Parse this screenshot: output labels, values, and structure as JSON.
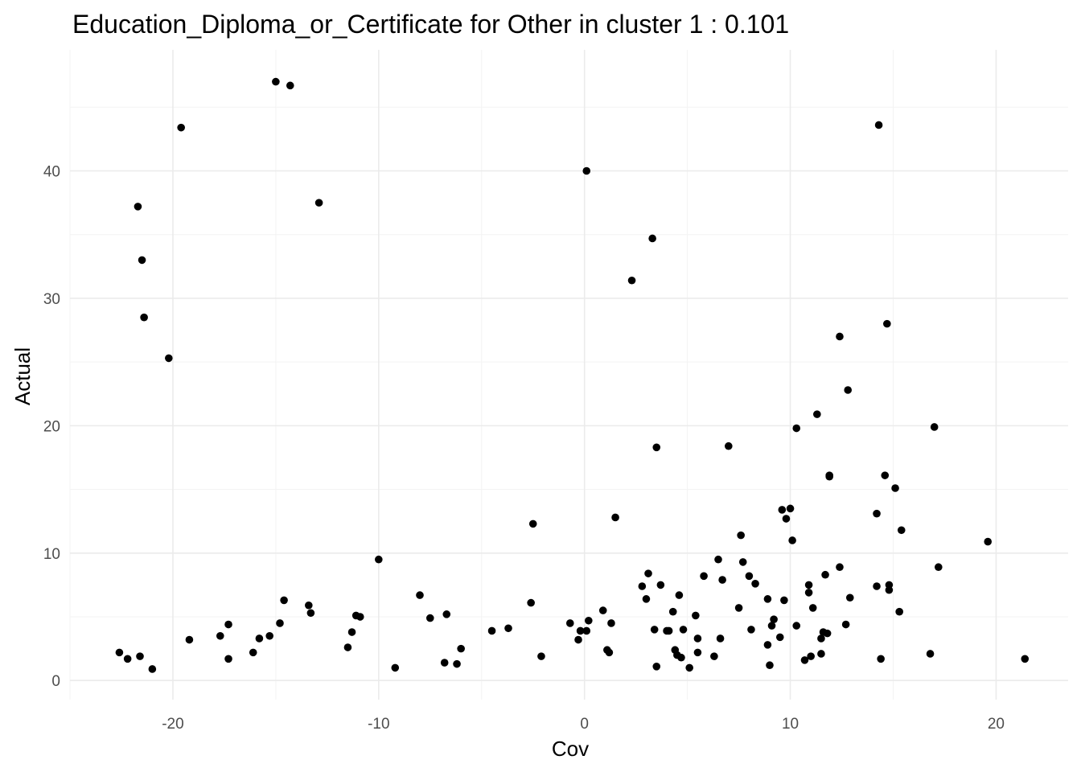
{
  "chart_data": {
    "type": "scatter",
    "title": "Education_Diploma_or_Certificate for Other in cluster 1 : 0.101",
    "xlabel": "Cov",
    "ylabel": "Actual",
    "xlim": [
      -25,
      23.5
    ],
    "ylim": [
      -1.5,
      49.5
    ],
    "x_ticks": [
      -20,
      -10,
      0,
      10,
      20
    ],
    "y_ticks": [
      0,
      10,
      20,
      30,
      40
    ],
    "x_tick_labels": [
      "-20",
      "-10",
      "0",
      "10",
      "20"
    ],
    "y_tick_labels": [
      "0",
      "10",
      "20",
      "30",
      "40"
    ],
    "x_minor": [
      -25,
      -15,
      -5,
      5,
      15
    ],
    "y_minor": [
      5,
      15,
      25,
      35,
      45
    ],
    "grid": true,
    "legend": "none",
    "point_color": "#000000",
    "x": [
      -22.6,
      -22.2,
      -21.7,
      -21.6,
      -21.5,
      -21.4,
      -21.0,
      -20.2,
      -19.6,
      -19.2,
      -17.7,
      -17.3,
      -17.3,
      -16.1,
      -15.8,
      -15.3,
      -15.0,
      -14.8,
      -14.6,
      -14.3,
      -13.4,
      -13.3,
      -12.9,
      -11.5,
      -11.3,
      -11.1,
      -10.9,
      -10.0,
      -9.2,
      -8.0,
      -7.5,
      -6.8,
      -6.7,
      -6.2,
      -6.0,
      -4.5,
      -3.7,
      -2.6,
      -2.5,
      -2.1,
      -0.7,
      -0.3,
      -0.2,
      0.1,
      0.1,
      0.2,
      0.9,
      1.1,
      1.2,
      1.3,
      1.5,
      2.3,
      2.8,
      3.0,
      3.1,
      3.3,
      3.4,
      3.5,
      3.5,
      3.7,
      4.0,
      4.1,
      4.3,
      4.4,
      4.5,
      4.6,
      4.7,
      4.8,
      5.1,
      5.4,
      5.5,
      5.5,
      5.8,
      6.3,
      6.5,
      6.6,
      6.7,
      7.0,
      7.5,
      7.6,
      7.7,
      8.0,
      8.1,
      8.3,
      8.9,
      8.9,
      9.0,
      9.1,
      9.2,
      9.5,
      9.6,
      9.7,
      9.8,
      10.0,
      10.1,
      10.3,
      10.3,
      10.7,
      10.9,
      10.9,
      11.0,
      11.1,
      11.3,
      11.5,
      11.5,
      11.6,
      11.7,
      11.8,
      11.9,
      11.9,
      12.4,
      12.4,
      12.7,
      12.8,
      12.9,
      14.2,
      14.2,
      14.3,
      14.4,
      14.6,
      14.7,
      14.8,
      14.8,
      15.1,
      15.3,
      15.4,
      16.8,
      17.0,
      17.2,
      19.6,
      21.4
    ],
    "y": [
      2.2,
      1.7,
      37.2,
      1.9,
      33.0,
      28.5,
      0.9,
      25.3,
      43.4,
      3.2,
      3.5,
      4.4,
      1.7,
      2.2,
      3.3,
      3.5,
      47.0,
      4.5,
      6.3,
      46.7,
      5.9,
      5.3,
      37.5,
      2.6,
      3.8,
      5.1,
      5.0,
      9.5,
      1.0,
      6.7,
      4.9,
      1.4,
      5.2,
      1.3,
      2.5,
      3.9,
      4.1,
      6.1,
      12.3,
      1.9,
      4.5,
      3.2,
      3.9,
      40.0,
      3.9,
      4.7,
      5.5,
      2.4,
      2.2,
      4.5,
      12.8,
      31.4,
      7.4,
      6.4,
      8.4,
      34.7,
      4.0,
      1.1,
      18.3,
      7.5,
      3.9,
      3.9,
      5.4,
      2.4,
      2.0,
      6.7,
      1.8,
      4.0,
      1.0,
      5.1,
      2.2,
      3.3,
      8.2,
      1.9,
      9.5,
      3.3,
      7.9,
      18.4,
      5.7,
      11.4,
      9.3,
      8.2,
      4.0,
      7.6,
      6.4,
      2.8,
      1.2,
      4.3,
      4.8,
      3.4,
      13.4,
      6.3,
      12.7,
      13.5,
      11.0,
      19.8,
      4.3,
      1.6,
      6.9,
      7.5,
      1.9,
      5.7,
      20.9,
      3.3,
      2.1,
      3.8,
      8.3,
      3.7,
      16.0,
      16.1,
      27.0,
      8.9,
      4.4,
      22.8,
      6.5,
      7.4,
      13.1,
      43.6,
      1.7,
      16.1,
      28.0,
      7.1,
      7.5,
      15.1,
      5.4,
      11.8,
      2.1,
      19.9,
      8.9,
      10.9,
      1.7
    ]
  }
}
